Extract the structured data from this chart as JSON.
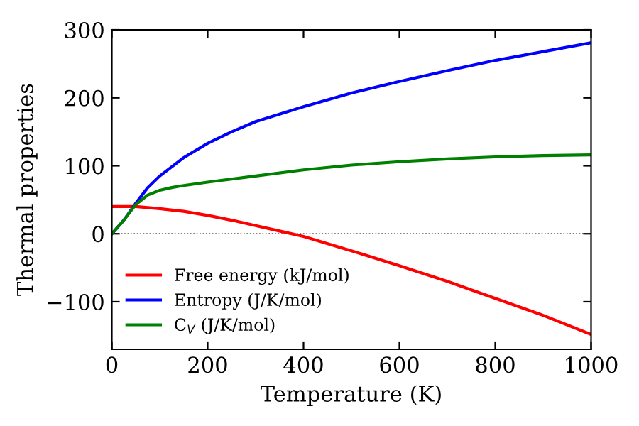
{
  "chart_data": {
    "type": "line",
    "xlabel": "Temperature (K)",
    "ylabel": "Thermal properties",
    "xlim": [
      0,
      1000
    ],
    "ylim": [
      -170,
      300
    ],
    "xticks": [
      0,
      200,
      400,
      600,
      800,
      1000
    ],
    "yticks": [
      {
        "value": -100,
        "label": "−100"
      },
      0,
      100,
      200,
      300
    ],
    "legend": "bottom left",
    "grid": false,
    "marker": "none",
    "line_style": "solid",
    "ref_lines": [
      {
        "axis": "y",
        "value": 0,
        "label": null,
        "color": "#000000",
        "line_style": "dotted"
      }
    ],
    "series": [
      {
        "name": "Free energy (kJ/mol)",
        "color": "#ff0000",
        "x": [
          0,
          50,
          100,
          150,
          200,
          250,
          300,
          350,
          400,
          500,
          600,
          700,
          800,
          900,
          1000
        ],
        "values": [
          40,
          40,
          37,
          33,
          27,
          20,
          12,
          4,
          -4,
          -25,
          -47,
          -70,
          -95,
          -120,
          -148
        ]
      },
      {
        "name": "Entropy (J/K/mol)",
        "color": "#0000ff",
        "x": [
          0,
          25,
          50,
          75,
          100,
          150,
          200,
          250,
          300,
          400,
          500,
          600,
          700,
          800,
          900,
          1000
        ],
        "values": [
          0,
          20,
          45,
          68,
          85,
          112,
          133,
          150,
          165,
          187,
          207,
          224,
          240,
          255,
          268,
          281
        ]
      },
      {
        "name": "C$_{V}$ (J/K/mol)",
        "color": "#008000",
        "x": [
          0,
          25,
          50,
          75,
          100,
          125,
          150,
          200,
          300,
          400,
          500,
          600,
          700,
          800,
          900,
          1000
        ],
        "values": [
          0,
          20,
          43,
          57,
          64,
          68,
          71,
          76,
          85,
          94,
          101,
          106,
          110,
          113,
          115,
          116
        ]
      }
    ]
  }
}
